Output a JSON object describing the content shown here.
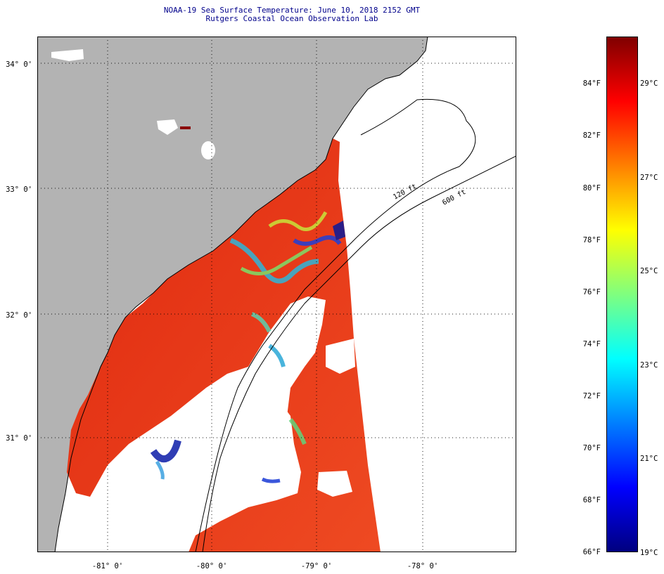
{
  "title": "NOAA-19 Sea Surface Temperature:  June 10, 2018 2152 GMT",
  "subtitle": "Rutgers Coastal Ocean Observation Lab",
  "lat_labels": [
    "34° 0'",
    "33° 0'",
    "32° 0'",
    "31° 0'"
  ],
  "lon_labels": [
    "-81° 0'",
    "-80° 0'",
    "-79° 0'",
    "-78° 0'"
  ],
  "isobath_labels": [
    "120 ft",
    "600 ft"
  ],
  "colorbar": {
    "f_labels": [
      "84°F",
      "82°F",
      "80°F",
      "78°F",
      "76°F",
      "74°F",
      "72°F",
      "70°F",
      "68°F",
      "66°F"
    ],
    "c_labels": [
      "29°C",
      "27°C",
      "25°C",
      "23°C",
      "21°C",
      "19°C"
    ],
    "min_c": 19,
    "max_c": 30,
    "stops": [
      "#00007f",
      "#0000ff",
      "#007fff",
      "#00ffff",
      "#7fff7f",
      "#ffff00",
      "#ff7f00",
      "#ff0000",
      "#7f0000"
    ]
  },
  "colors": {
    "land": "#b3b3b3",
    "cloud": "#ffffff",
    "warm_sst": "#e8361a",
    "label": "#00008b"
  }
}
